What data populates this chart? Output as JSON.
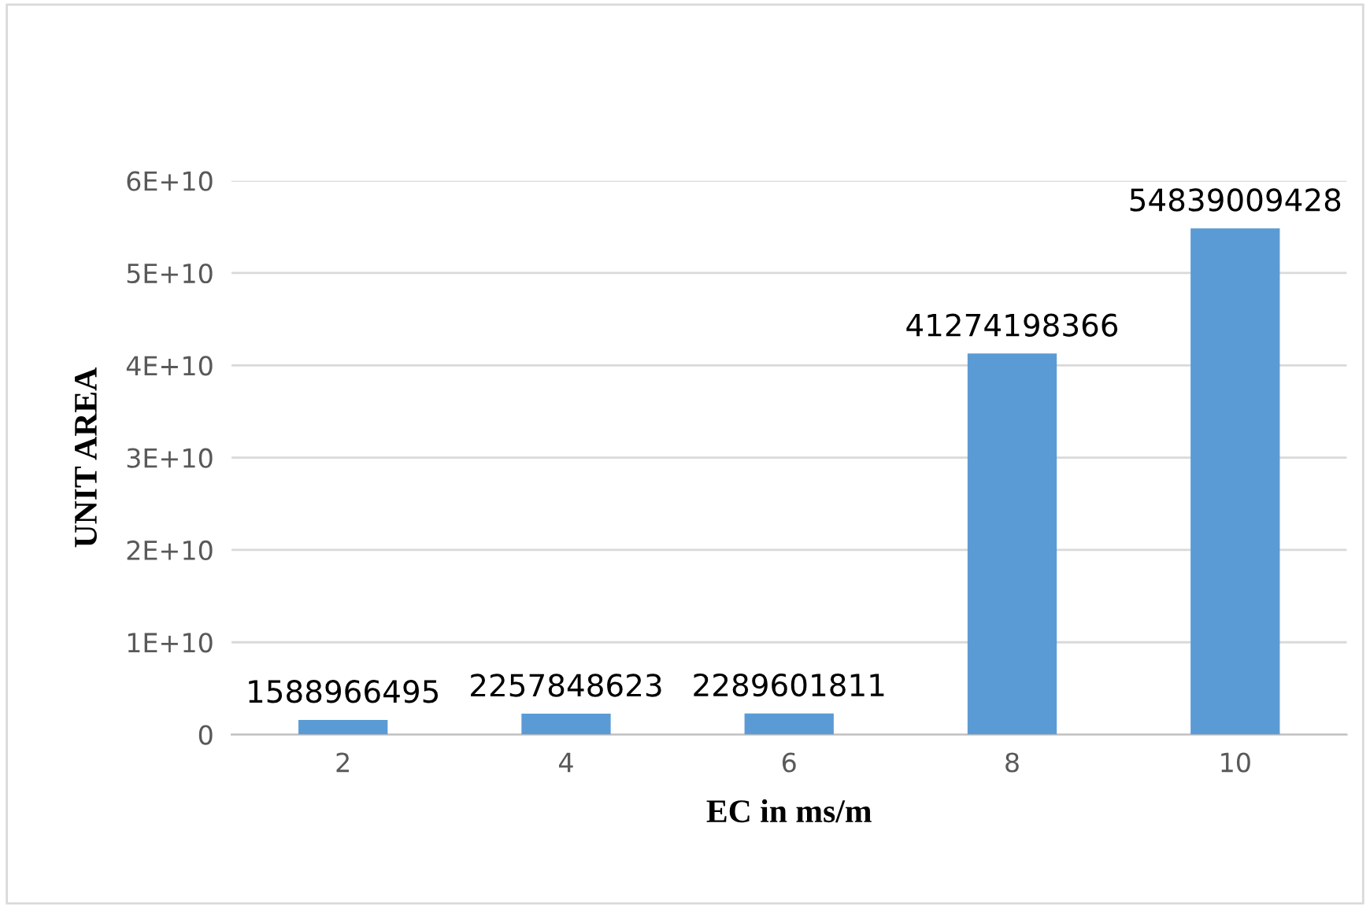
{
  "chart_data": {
    "type": "bar",
    "xlabel": "EC in ms/m",
    "ylabel": "UNIT AREA",
    "categories": [
      "2",
      "4",
      "6",
      "8",
      "10"
    ],
    "values": [
      1588966495,
      2257848623,
      2289601811,
      41274198366,
      54839009428
    ],
    "color": "#5b9bd5",
    "ylim": [
      0,
      60000000000
    ],
    "yticks": [
      0,
      {
        "value": 10000000000,
        "label": "1E+10"
      },
      {
        "value": 20000000000,
        "label": "2E+10"
      },
      {
        "value": 30000000000,
        "label": "3E+10"
      },
      {
        "value": 40000000000,
        "label": "4E+10"
      },
      {
        "value": 50000000000,
        "label": "5E+10"
      },
      {
        "value": 60000000000,
        "label": "6E+10"
      }
    ],
    "grid": "y",
    "data_labels": true
  }
}
